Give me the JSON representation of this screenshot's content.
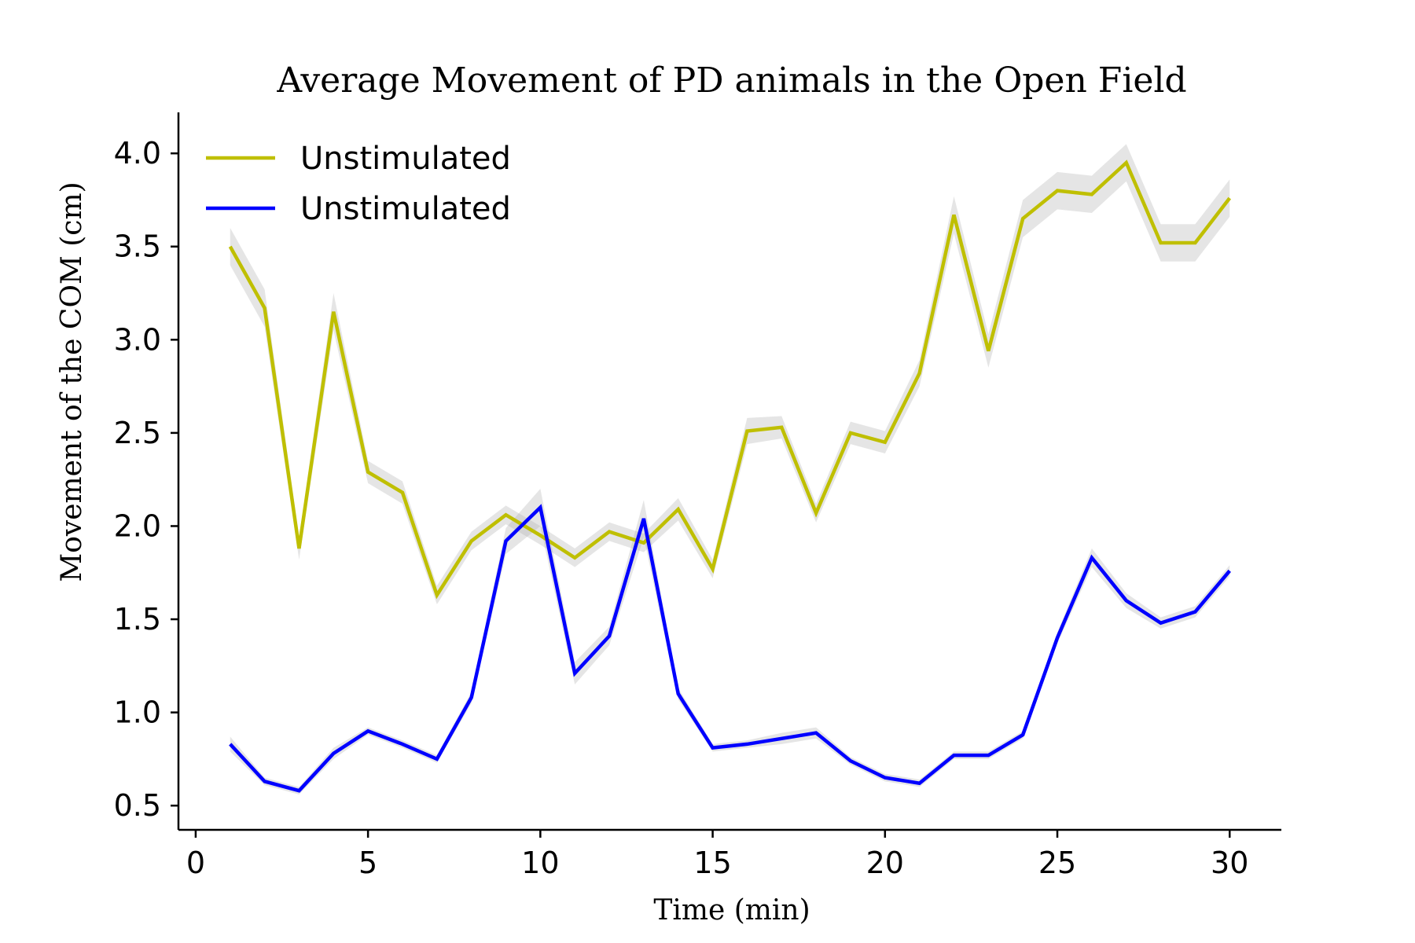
{
  "chart_data": {
    "type": "line",
    "title": "Average Movement of PD animals in the Open Field",
    "xlabel": "Time (min)",
    "ylabel": "Movement of the COM (cm)",
    "xlim": [
      -0.5,
      31.5
    ],
    "ylim": [
      0.37,
      4.22
    ],
    "xticks": [
      0,
      5,
      10,
      15,
      20,
      25,
      30
    ],
    "yticks": [
      0.5,
      1.0,
      1.5,
      2.0,
      2.5,
      3.0,
      3.5,
      4.0
    ],
    "xtick_labels": [
      "0",
      "5",
      "10",
      "15",
      "20",
      "25",
      "30"
    ],
    "ytick_labels": [
      "0.5",
      "1.0",
      "1.5",
      "2.0",
      "2.5",
      "3.0",
      "3.5",
      "4.0"
    ],
    "grid": false,
    "legend_position": "top-left",
    "band_color": "#aaaaaa",
    "x": [
      1,
      2,
      3,
      4,
      5,
      6,
      7,
      8,
      9,
      10,
      11,
      12,
      13,
      14,
      15,
      16,
      17,
      18,
      19,
      20,
      21,
      22,
      23,
      24,
      25,
      26,
      27,
      28,
      29,
      30
    ],
    "series": [
      {
        "name": "Unstimulated",
        "color": "#bfbf00",
        "values": [
          3.5,
          3.17,
          1.88,
          3.15,
          2.29,
          2.18,
          1.63,
          1.92,
          2.06,
          1.95,
          1.83,
          1.97,
          1.91,
          2.09,
          1.77,
          2.51,
          2.53,
          2.07,
          2.5,
          2.45,
          2.82,
          3.67,
          2.94,
          3.65,
          3.8,
          3.78,
          3.95,
          3.52,
          3.52,
          3.76
        ],
        "band": [
          0.1,
          0.1,
          0.06,
          0.1,
          0.06,
          0.06,
          0.05,
          0.05,
          0.05,
          0.05,
          0.05,
          0.05,
          0.05,
          0.06,
          0.05,
          0.07,
          0.06,
          0.05,
          0.06,
          0.06,
          0.07,
          0.1,
          0.09,
          0.1,
          0.1,
          0.1,
          0.1,
          0.1,
          0.1,
          0.1
        ]
      },
      {
        "name": "Unstimulated",
        "color": "#0000ff",
        "values": [
          0.83,
          0.63,
          0.58,
          0.78,
          0.9,
          0.83,
          0.75,
          1.08,
          1.92,
          2.1,
          1.21,
          1.41,
          2.04,
          1.1,
          0.81,
          0.83,
          0.86,
          0.89,
          0.74,
          0.65,
          0.62,
          0.77,
          0.77,
          0.88,
          1.4,
          1.83,
          1.6,
          1.48,
          1.54,
          1.76
        ],
        "band": [
          0.04,
          0.02,
          0.02,
          0.03,
          0.02,
          0.02,
          0.02,
          0.03,
          0.07,
          0.1,
          0.06,
          0.05,
          0.1,
          0.03,
          0.02,
          0.02,
          0.03,
          0.03,
          0.02,
          0.02,
          0.02,
          0.02,
          0.02,
          0.02,
          0.03,
          0.05,
          0.04,
          0.03,
          0.03,
          0.03
        ]
      }
    ]
  }
}
